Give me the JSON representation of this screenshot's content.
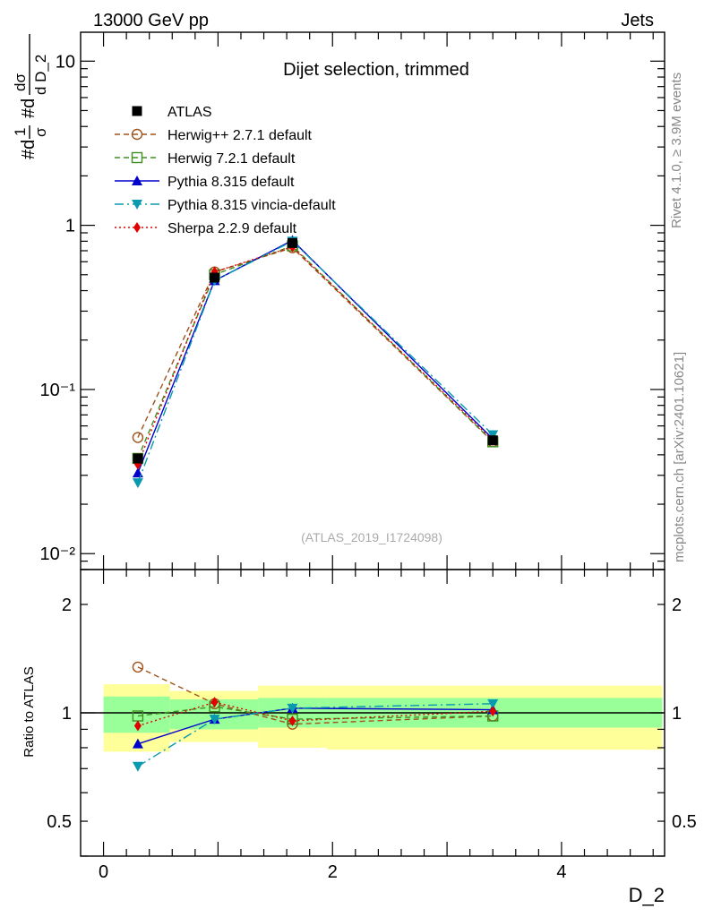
{
  "header": {
    "left": "13000 GeV pp",
    "right": "Jets"
  },
  "side_labels": {
    "rivet": "Rivet 4.1.0, ≥ 3.9M events",
    "mcplots": "mcplots.cern.ch [arXiv:2401.10621]"
  },
  "chart_data": [
    {
      "type": "line",
      "panel": "main",
      "title": "Dijet selection, trimmed",
      "watermark": "(ATLAS_2019_I1724098)",
      "ylabel_parts": [
        "#d",
        "1",
        "σ",
        "#d",
        "dσ",
        "d D_2"
      ],
      "yscale": "log",
      "ylim": [
        0.008,
        15
      ],
      "xlim": [
        -0.2,
        4.9
      ],
      "yticks": [
        {
          "value": 10,
          "label": "10"
        },
        {
          "value": 1,
          "label": "1"
        },
        {
          "value": 0.1,
          "label": "10⁻¹"
        },
        {
          "value": 0.01,
          "label": "10⁻²"
        }
      ],
      "x": [
        0.3,
        0.97,
        1.65,
        3.4
      ],
      "legend_position": "top-left",
      "series": [
        {
          "name": "ATLAS",
          "color": "#000000",
          "marker": "filled-square",
          "dash": "none",
          "values": [
            0.038,
            0.48,
            0.78,
            0.049
          ]
        },
        {
          "name": "Herwig++ 2.7.1 default",
          "color": "#a0521d",
          "marker": "open-circle",
          "dash": "6,4",
          "values": [
            0.051,
            0.52,
            0.73,
            0.048
          ]
        },
        {
          "name": "Herwig 7.2.1 default",
          "color": "#3f8f1f",
          "marker": "open-square",
          "dash": "6,4",
          "values": [
            0.038,
            0.5,
            0.75,
            0.048
          ]
        },
        {
          "name": "Pythia 8.315 default",
          "color": "#0000cc",
          "marker": "filled-triangle-up",
          "dash": "none",
          "values": [
            0.031,
            0.46,
            0.81,
            0.05
          ]
        },
        {
          "name": "Pythia 8.315 vincia-default",
          "color": "#0a9ab0",
          "marker": "filled-triangle-down",
          "dash": "10,4,2,4",
          "values": [
            0.027,
            0.46,
            0.8,
            0.053
          ]
        },
        {
          "name": "Sherpa 2.2.9 default",
          "color": "#e00000",
          "marker": "filled-diamond",
          "dash": "2,3",
          "values": [
            0.035,
            0.52,
            0.74,
            0.049
          ]
        }
      ]
    },
    {
      "type": "line",
      "panel": "ratio",
      "ylabel": "Ratio to ATLAS",
      "xlabel": "D_2",
      "yscale": "log",
      "ylim": [
        0.4,
        2.5
      ],
      "yticks": [
        {
          "value": 2,
          "label": "2"
        },
        {
          "value": 1,
          "label": "1"
        },
        {
          "value": 0.5,
          "label": "0.5"
        }
      ],
      "xticks": [
        {
          "value": 0,
          "label": "0"
        },
        {
          "value": 2,
          "label": "2"
        },
        {
          "value": 4,
          "label": "4"
        }
      ],
      "x": [
        0.3,
        0.97,
        1.65,
        3.4
      ],
      "uncertainty_bins": [
        {
          "x0": 0.0,
          "x1": 0.58,
          "inner": [
            0.88,
            1.11
          ],
          "outer": [
            0.78,
            1.2
          ]
        },
        {
          "x0": 0.58,
          "x1": 1.35,
          "inner": [
            0.9,
            1.09
          ],
          "outer": [
            0.83,
            1.15
          ]
        },
        {
          "x0": 1.35,
          "x1": 1.95,
          "inner": [
            0.91,
            1.1
          ],
          "outer": [
            0.8,
            1.19
          ]
        },
        {
          "x0": 1.95,
          "x1": 4.88,
          "inner": [
            0.91,
            1.1
          ],
          "outer": [
            0.79,
            1.19
          ]
        }
      ],
      "series": [
        {
          "name": "Herwig++ 2.7.1 default",
          "values": [
            1.34,
            1.06,
            0.93,
            0.98
          ]
        },
        {
          "name": "Herwig 7.2.1 default",
          "values": [
            0.98,
            1.04,
            0.96,
            0.98
          ]
        },
        {
          "name": "Pythia 8.315 default",
          "values": [
            0.82,
            0.96,
            1.03,
            1.02
          ]
        },
        {
          "name": "Pythia 8.315 vincia-default",
          "values": [
            0.71,
            0.96,
            1.03,
            1.06
          ]
        },
        {
          "name": "Sherpa 2.2.9 default",
          "values": [
            0.92,
            1.07,
            0.95,
            1.01
          ]
        }
      ]
    }
  ]
}
